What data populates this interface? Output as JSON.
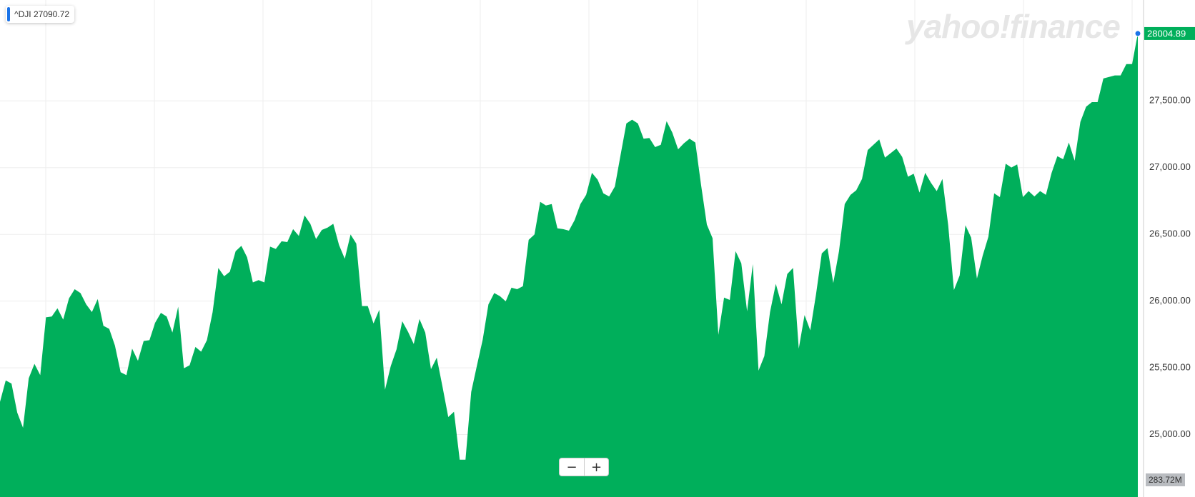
{
  "chart_data": {
    "type": "area",
    "watermark": "yahoo!finance",
    "series": [
      {
        "name": "^DJI",
        "color": "#00af5b",
        "values": [
          25245,
          25405,
          25382,
          25165,
          25051,
          25422,
          25530,
          25445,
          25878,
          25884,
          25946,
          25861,
          26020,
          26089,
          26060,
          25975,
          25918,
          26015,
          25815,
          25792,
          25667,
          25467,
          25445,
          25644,
          25553,
          25701,
          25707,
          25838,
          25912,
          25884,
          25764,
          25958,
          25496,
          25519,
          25656,
          25621,
          25707,
          25918,
          26248,
          26186,
          26220,
          26374,
          26414,
          26328,
          26140,
          26157,
          26140,
          26408,
          26391,
          26448,
          26442,
          26539,
          26488,
          26642,
          26579,
          26465,
          26533,
          26550,
          26579,
          26419,
          26317,
          26499,
          26431,
          25963,
          25963,
          25832,
          25935,
          25336,
          25513,
          25638,
          25849,
          25770,
          25678,
          25866,
          25764,
          25490,
          25576,
          25359,
          25131,
          25171,
          24812,
          24812,
          25319,
          25519,
          25712,
          25975,
          26060,
          26037,
          25998,
          26100,
          26089,
          26112,
          26459,
          26499,
          26744,
          26716,
          26727,
          26545,
          26539,
          26528,
          26607,
          26727,
          26796,
          26961,
          26910,
          26807,
          26784,
          26858,
          27098,
          27331,
          27359,
          27331,
          27217,
          27222,
          27154,
          27171,
          27348,
          27262,
          27137,
          27182,
          27217,
          27188,
          26870,
          26573,
          26471,
          25747,
          26026,
          26009,
          26374,
          26283,
          25923,
          26277,
          25479,
          25587,
          25918,
          26129,
          25975,
          26203,
          26248,
          25644,
          25895,
          25781,
          26049,
          26357,
          26397,
          26135,
          26374,
          26727,
          26796,
          26830,
          26915,
          27132,
          27171,
          27211,
          27075,
          27109,
          27143,
          27080,
          26932,
          26955,
          26813,
          26961,
          26887,
          26824,
          26915,
          26568,
          26083,
          26191,
          26568,
          26476,
          26169,
          26340,
          26482,
          26807,
          26779,
          27029,
          27001,
          27024,
          26779,
          26824,
          26784,
          26824,
          26796,
          26961,
          27086,
          27063,
          27188,
          27052,
          27342,
          27456,
          27491,
          27491,
          27668,
          27679,
          27691,
          27691,
          27776,
          27776,
          28004.89
        ]
      }
    ],
    "legend_value": 27090.72,
    "volume_label": "283.72M",
    "zoom_controls": [
      "−",
      "+"
    ],
    "ylim": [
      24532,
      28256
    ],
    "yticks": [
      {
        "value": 25000,
        "label": "25,000.00"
      },
      {
        "value": 25500,
        "label": "25,500.00"
      },
      {
        "value": 26000,
        "label": "26,000.00"
      },
      {
        "value": 26500,
        "label": "26,500.00"
      },
      {
        "value": 27000,
        "label": "27,000.00"
      },
      {
        "value": 27500,
        "label": "27,500.00"
      }
    ],
    "grid": true
  }
}
